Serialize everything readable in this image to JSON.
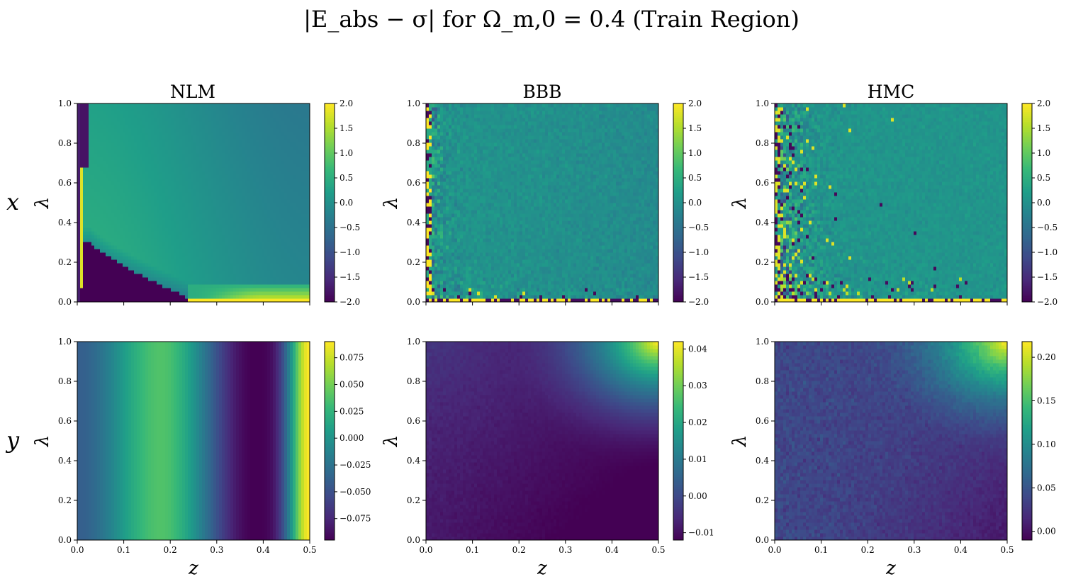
{
  "title": "|E_abs − σ| for Ω_m,0 = 0.4 (Train Region)",
  "column_titles": [
    "NLM",
    "BBB",
    "HMC"
  ],
  "row_labels": [
    "x",
    "y"
  ],
  "axis_labels": {
    "x": "z",
    "y": "λ"
  },
  "colormap": [
    "#440154",
    "#482878",
    "#3e4989",
    "#31688e",
    "#26828e",
    "#1f9e89",
    "#35b779",
    "#6ece58",
    "#b5de2b",
    "#fde725"
  ],
  "chart_data": [
    {
      "type": "heatmap",
      "panel": "x-NLM",
      "title": "NLM",
      "row": "x",
      "xlabel": "",
      "ylabel": "λ",
      "xlim": [
        0,
        0.5
      ],
      "ylim": [
        0,
        1
      ],
      "x_ticks": [
        "0.0",
        "0.1",
        "0.2",
        "0.3",
        "0.4",
        "0.5"
      ],
      "show_x_ticklabels": false,
      "y_ticks": [
        "0.0",
        "0.2",
        "0.4",
        "0.6",
        "0.8",
        "1.0"
      ],
      "clim": [
        -2.0,
        2.0
      ],
      "colorbar_ticks": [
        "2.0",
        "1.5",
        "1.0",
        "0.5",
        "0.0",
        "−0.5",
        "−1.0",
        "−1.5",
        "−2.0"
      ],
      "pattern": "nlm_x"
    },
    {
      "type": "heatmap",
      "panel": "x-BBB",
      "title": "BBB",
      "row": "x",
      "xlabel": "",
      "ylabel": "λ",
      "xlim": [
        0,
        0.5
      ],
      "ylim": [
        0,
        1
      ],
      "x_ticks": [
        "0.0",
        "0.1",
        "0.2",
        "0.3",
        "0.4",
        "0.5"
      ],
      "show_x_ticklabels": false,
      "y_ticks": [
        "0.0",
        "0.2",
        "0.4",
        "0.6",
        "0.8",
        "1.0"
      ],
      "clim": [
        -2.0,
        2.0
      ],
      "colorbar_ticks": [
        "2.0",
        "1.5",
        "1.0",
        "0.5",
        "0.0",
        "−0.5",
        "−1.0",
        "−1.5",
        "−2.0"
      ],
      "pattern": "noisy_x"
    },
    {
      "type": "heatmap",
      "panel": "x-HMC",
      "title": "HMC",
      "row": "x",
      "xlabel": "",
      "ylabel": "λ",
      "xlim": [
        0,
        0.5
      ],
      "ylim": [
        0,
        1
      ],
      "x_ticks": [
        "0.0",
        "0.1",
        "0.2",
        "0.3",
        "0.4",
        "0.5"
      ],
      "show_x_ticklabels": false,
      "y_ticks": [
        "0.0",
        "0.2",
        "0.4",
        "0.6",
        "0.8",
        "1.0"
      ],
      "clim": [
        -2.0,
        2.0
      ],
      "colorbar_ticks": [
        "2.0",
        "1.5",
        "1.0",
        "0.5",
        "0.0",
        "−0.5",
        "−1.0",
        "−1.5",
        "−2.0"
      ],
      "pattern": "noisy_x_strong"
    },
    {
      "type": "heatmap",
      "panel": "y-NLM",
      "title": "",
      "row": "y",
      "xlabel": "z",
      "ylabel": "λ",
      "xlim": [
        0,
        0.5
      ],
      "ylim": [
        0,
        1
      ],
      "x_ticks": [
        "0.0",
        "0.1",
        "0.2",
        "0.3",
        "0.4",
        "0.5"
      ],
      "show_x_ticklabels": true,
      "y_ticks": [
        "0.0",
        "0.2",
        "0.4",
        "0.6",
        "0.8",
        "1.0"
      ],
      "clim": [
        -0.095,
        0.09
      ],
      "colorbar_ticks": [
        "0.075",
        "0.050",
        "0.025",
        "0.000",
        "−0.025",
        "−0.050",
        "−0.075"
      ],
      "colorbar_tick_values": [
        0.075,
        0.05,
        0.025,
        0.0,
        -0.025,
        -0.05,
        -0.075
      ],
      "pattern": "nlm_y"
    },
    {
      "type": "heatmap",
      "panel": "y-BBB",
      "title": "",
      "row": "y",
      "xlabel": "z",
      "ylabel": "λ",
      "xlim": [
        0,
        0.5
      ],
      "ylim": [
        0,
        1
      ],
      "x_ticks": [
        "0.0",
        "0.1",
        "0.2",
        "0.3",
        "0.4",
        "0.5"
      ],
      "show_x_ticklabels": true,
      "y_ticks": [
        "0.0",
        "0.2",
        "0.4",
        "0.6",
        "0.8",
        "1.0"
      ],
      "clim": [
        -0.012,
        0.042
      ],
      "colorbar_ticks": [
        "0.04",
        "0.03",
        "0.02",
        "0.01",
        "0.00",
        "−0.01"
      ],
      "colorbar_tick_values": [
        0.04,
        0.03,
        0.02,
        0.01,
        0.0,
        -0.01
      ],
      "pattern": "corner_y_bbb"
    },
    {
      "type": "heatmap",
      "panel": "y-HMC",
      "title": "",
      "row": "y",
      "xlabel": "z",
      "ylabel": "λ",
      "xlim": [
        0,
        0.5
      ],
      "ylim": [
        0,
        1
      ],
      "x_ticks": [
        "0.0",
        "0.1",
        "0.2",
        "0.3",
        "0.4",
        "0.5"
      ],
      "show_x_ticklabels": true,
      "y_ticks": [
        "0.0",
        "0.2",
        "0.4",
        "0.6",
        "0.8",
        "1.0"
      ],
      "clim": [
        -0.01,
        0.218
      ],
      "colorbar_ticks": [
        "0.20",
        "0.15",
        "0.10",
        "0.05",
        "0.00"
      ],
      "colorbar_tick_values": [
        0.2,
        0.15,
        0.1,
        0.05,
        0.0
      ],
      "pattern": "corner_y_hmc"
    }
  ]
}
